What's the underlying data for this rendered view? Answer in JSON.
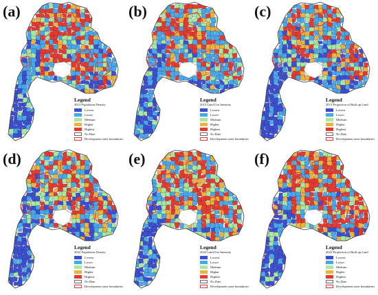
{
  "colors": {
    "lowest": "#3a4fd6",
    "lower": "#46a8ee",
    "medium": "#a8e8a0",
    "higher": "#f0b23c",
    "highest": "#e8392f",
    "no_data": "#ffffff",
    "boundary": "#e8392f"
  },
  "legend_items": [
    "Lowest",
    "Lower",
    "Medium",
    "Higher",
    "Highest",
    "No Date",
    "Development zone boundaries"
  ],
  "panels": [
    {
      "label": "(a)",
      "legend_title": "Legend",
      "subtitle": "2013 Population Density",
      "levels": [
        0.32,
        0.3,
        0.16,
        0.14,
        0.08
      ]
    },
    {
      "label": "(b)",
      "legend_title": "Legend",
      "subtitle": "2013 Land Use Intensity",
      "levels": [
        0.28,
        0.36,
        0.17,
        0.14,
        0.05
      ]
    },
    {
      "label": "(c)",
      "legend_title": "Legend",
      "subtitle": "2013 Proportion of Built up Land",
      "levels": [
        0.36,
        0.33,
        0.14,
        0.13,
        0.04
      ]
    },
    {
      "label": "(d)",
      "legend_title": "Legend",
      "subtitle": "2022 Population Density",
      "levels": [
        0.36,
        0.3,
        0.18,
        0.12,
        0.04
      ]
    },
    {
      "label": "(e)",
      "legend_title": "Legend",
      "subtitle": "2022 Land Use Intensity",
      "levels": [
        0.25,
        0.27,
        0.2,
        0.15,
        0.13
      ]
    },
    {
      "label": "(f)",
      "legend_title": "Legend",
      "subtitle": "2022 Proportion of Built up Land",
      "levels": [
        0.3,
        0.27,
        0.17,
        0.15,
        0.11
      ]
    }
  ]
}
